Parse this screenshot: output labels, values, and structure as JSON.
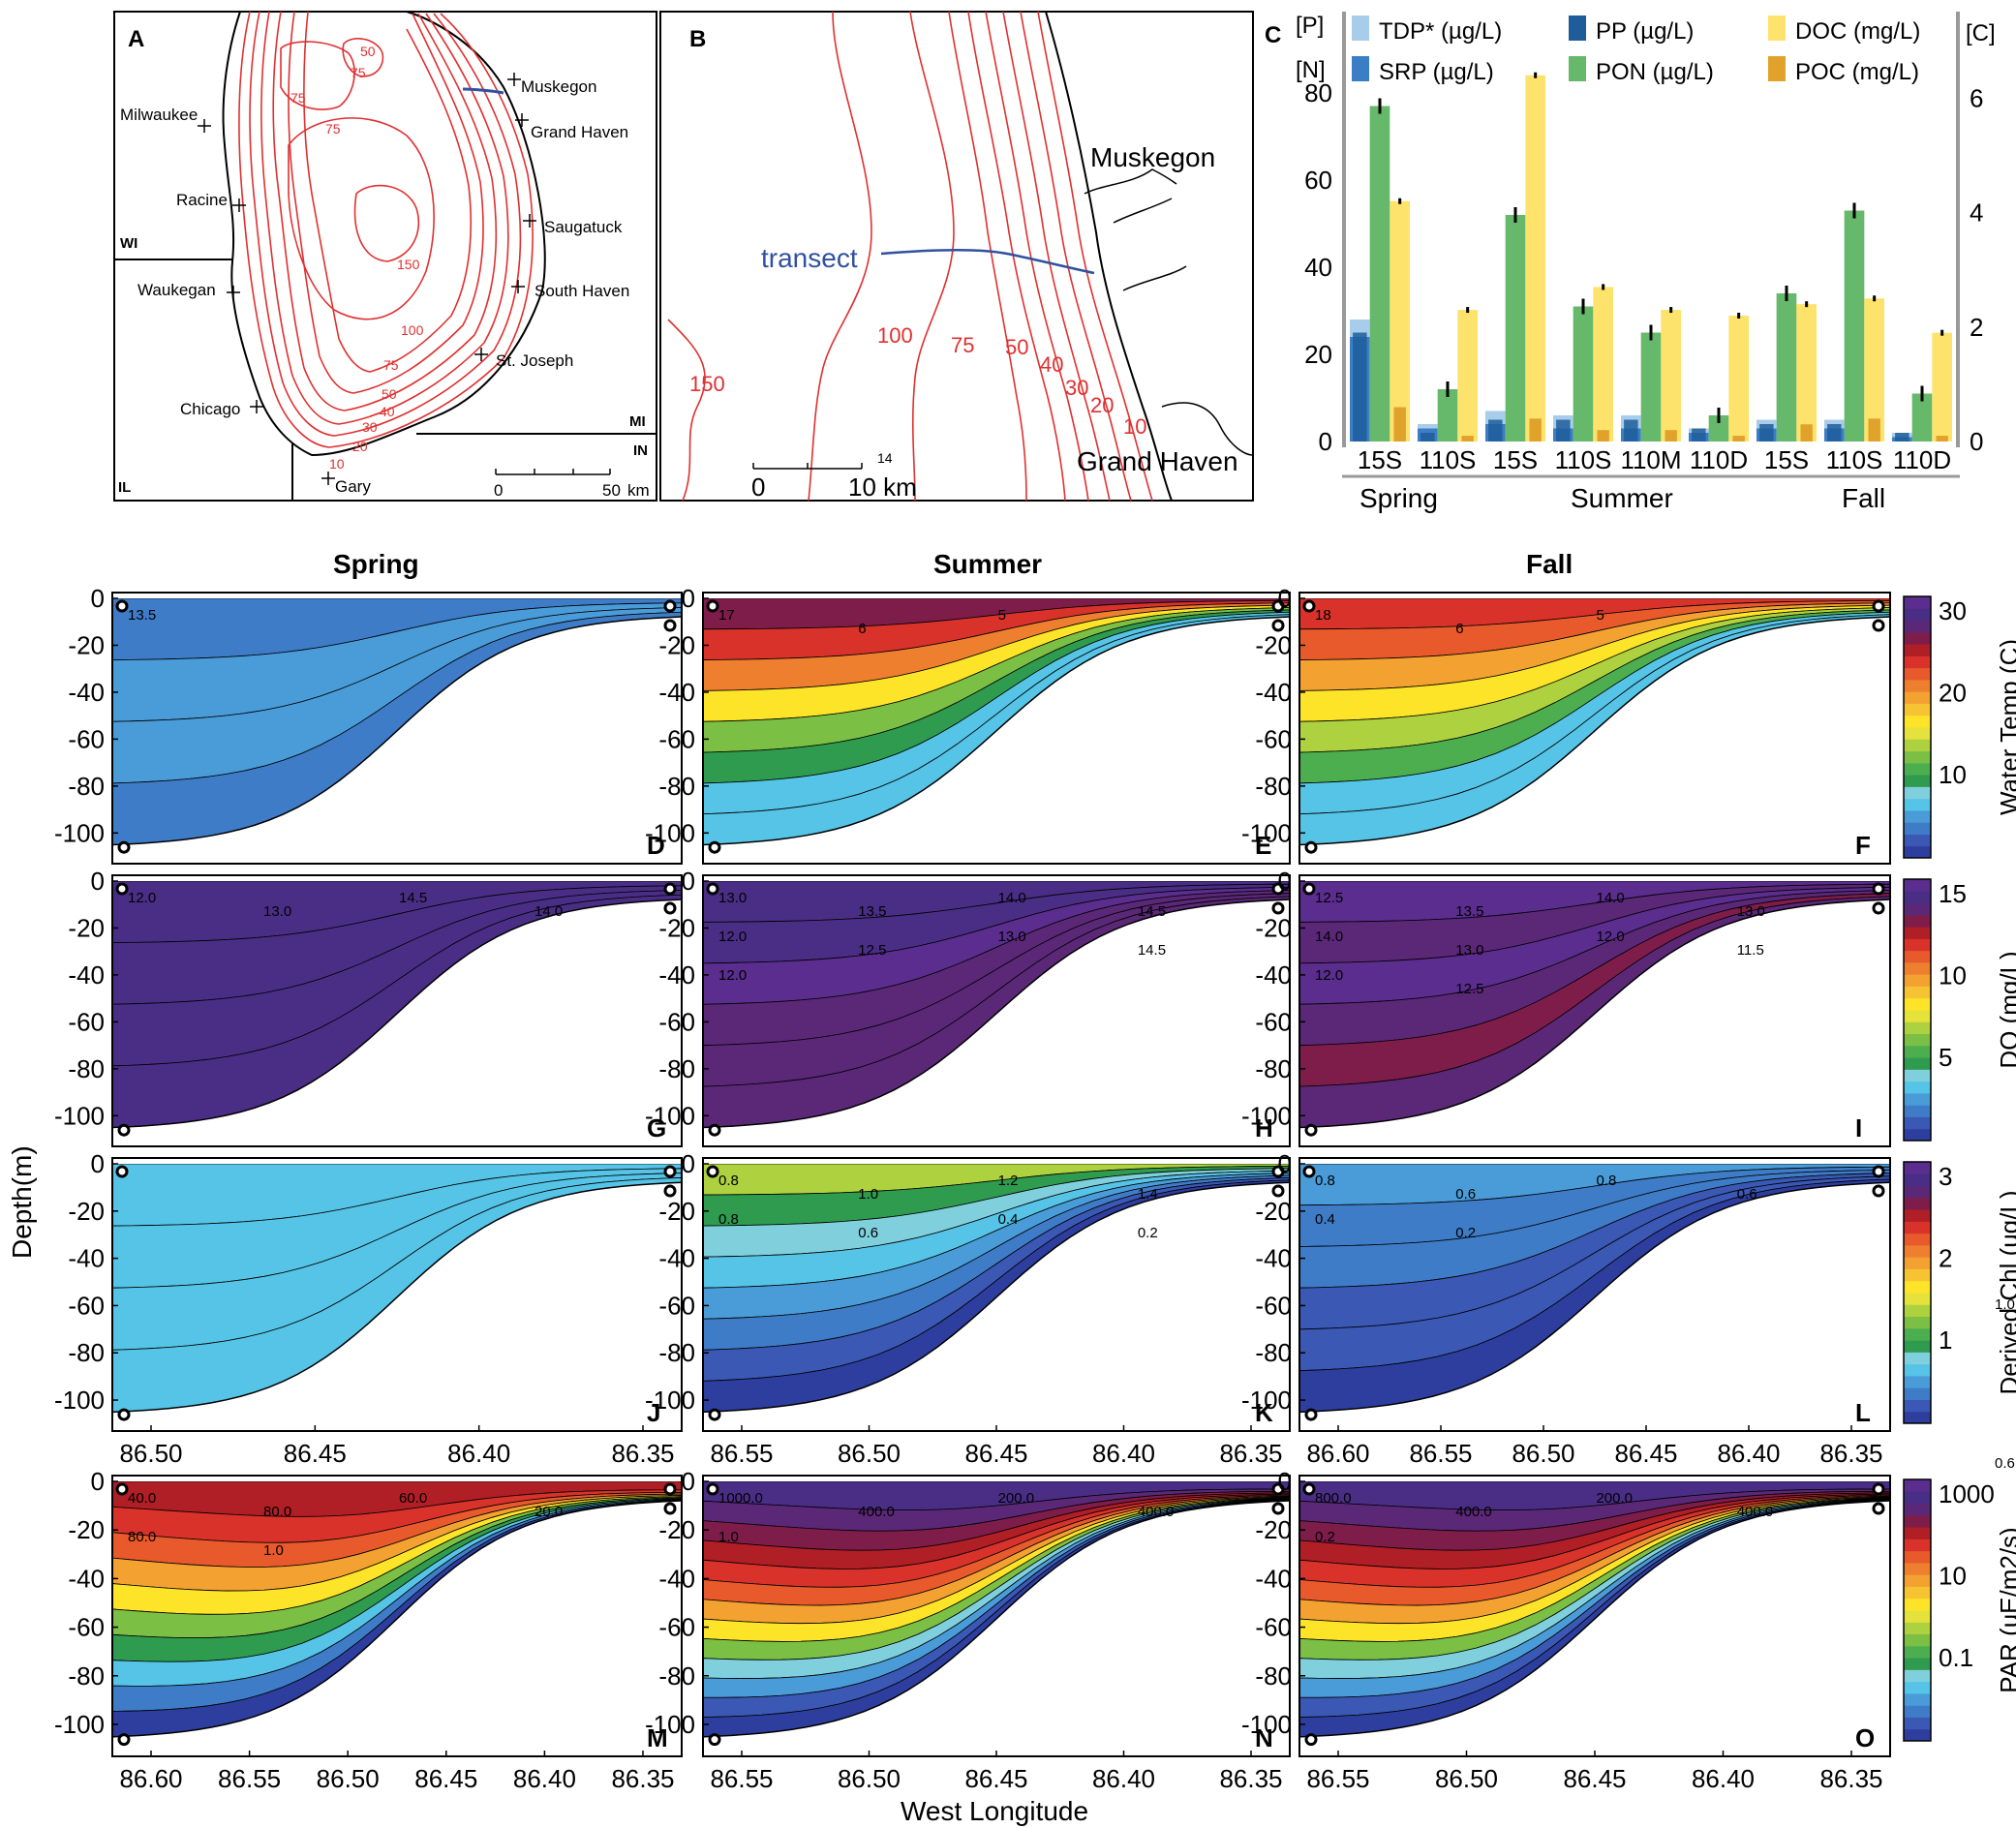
{
  "panel_letters": [
    "A",
    "B",
    "C",
    "D",
    "E",
    "F",
    "G",
    "H",
    "I",
    "J",
    "K",
    "L",
    "M",
    "N",
    "O"
  ],
  "map_a": {
    "cities": [
      "Muskegon",
      "Grand Haven",
      "Milwaukee",
      "Racine",
      "Saugatuck",
      "South Haven",
      "Waukegan",
      "St. Joseph",
      "Chicago",
      "Gary"
    ],
    "states": [
      "WI",
      "MI",
      "IN",
      "IL"
    ],
    "contours": [
      "50",
      "75",
      "75",
      "75",
      "150",
      "100",
      "75",
      "50",
      "40",
      "30",
      "20",
      "10"
    ],
    "scale": [
      "0",
      "50",
      "km"
    ]
  },
  "map_b": {
    "places": [
      "Muskegon",
      "Grand Haven"
    ],
    "transect": "transect",
    "contours": [
      "150",
      "100",
      "75",
      "50",
      "40",
      "30",
      "20",
      "10"
    ],
    "scale": [
      "0",
      "10 km"
    ],
    "scale_note": "14"
  },
  "bar_chart": {
    "left_axis": [
      "[P]",
      "[N]"
    ],
    "right_axis": "[C]",
    "legend": [
      "TDP* (µg/L)",
      "SRP (µg/L)",
      "PP (µg/L)",
      "PON (µg/L)",
      "DOC (mg/L)",
      "POC (mg/L)"
    ],
    "yticks_left": [
      "0",
      "20",
      "40",
      "60",
      "80"
    ],
    "yticks_right": [
      "0",
      "2",
      "4",
      "6"
    ],
    "stations": [
      "15S",
      "110S",
      "15S",
      "110S",
      "110M",
      "110D",
      "15S",
      "110S",
      "110D"
    ],
    "seasons": [
      "Spring",
      "Summer",
      "Fall"
    ]
  },
  "chart_data": {
    "type": "bar",
    "categories": [
      "Spring 15S",
      "Spring 110S",
      "Summer 15S",
      "Summer 110S",
      "Summer 110M",
      "Summer 110D",
      "Fall 15S",
      "Fall 110S",
      "Fall 110D"
    ],
    "series": [
      {
        "name": "TDP* (µg/L)",
        "values": [
          28,
          4,
          7,
          6,
          6,
          3,
          5,
          5,
          2
        ]
      },
      {
        "name": "SRP (µg/L)",
        "values": [
          24,
          3,
          4,
          3,
          3,
          2,
          3,
          3,
          1
        ]
      },
      {
        "name": "PP (µg/L)",
        "values": [
          25,
          2,
          5,
          5,
          5,
          3,
          4,
          4,
          2
        ]
      },
      {
        "name": "PON (µg/L)",
        "values": [
          77,
          12,
          52,
          31,
          25,
          6,
          34,
          53,
          11
        ]
      },
      {
        "name": "DOC (mg/L)",
        "values": [
          4.2,
          2.3,
          6.4,
          2.7,
          2.3,
          2.2,
          2.4,
          2.5,
          1.9
        ]
      },
      {
        "name": "POC (mg/L)",
        "values": [
          0.6,
          0.1,
          0.4,
          0.2,
          0.2,
          0.1,
          0.3,
          0.4,
          0.1
        ]
      }
    ],
    "ylim_left": [
      0,
      88
    ],
    "ylim_right": [
      0,
      6.7
    ],
    "legend_position": "top"
  },
  "sections": {
    "seasons": [
      "Spring",
      "Summer",
      "Fall"
    ],
    "ylabel": "Depth(m)",
    "xlabel": "West Longitude",
    "depth_ticks": [
      "0",
      "-20",
      "-40",
      "-60",
      "-80",
      "-100"
    ],
    "lon_ticks_spring_j": [
      "86.50",
      "86.45",
      "86.40",
      "86.35"
    ],
    "lon_ticks_spring_m": [
      "86.60",
      "86.55",
      "86.50",
      "86.45",
      "86.40",
      "86.35"
    ],
    "lon_ticks_summer": [
      "86.55",
      "86.50",
      "86.45",
      "86.40",
      "86.35"
    ],
    "lon_ticks_fall_l": [
      "86.60",
      "86.55",
      "86.50",
      "86.45",
      "86.40",
      "86.35"
    ],
    "lon_ticks_fall_o": [
      "86.55",
      "86.50",
      "86.45",
      "86.40",
      "86.35"
    ],
    "contour_labels": {
      "D": [
        "13.5"
      ],
      "E": [
        "17",
        "6",
        "5"
      ],
      "F": [
        "18",
        "6",
        "5"
      ],
      "G": [
        "12.0",
        "13.0",
        "14.5",
        "14.0"
      ],
      "H": [
        "13.0",
        "13.5",
        "14.0",
        "14.5",
        "12.0",
        "12.5",
        "13.0",
        "14.5",
        "12.0"
      ],
      "I": [
        "12.5",
        "13.5",
        "14.0",
        "13.0",
        "14.0",
        "13.0",
        "12.0",
        "11.5",
        "12.0",
        "12.5"
      ],
      "J": [],
      "K": [
        "0.8",
        "1.0",
        "1.2",
        "1.4",
        "0.8",
        "0.6",
        "0.4",
        "0.2"
      ],
      "L": [
        "0.8",
        "0.6",
        "0.8",
        "0.6",
        "0.4",
        "0.2"
      ],
      "M": [
        "40.0",
        "80.0",
        "60.0",
        "20.0",
        "80.0",
        "1.0"
      ],
      "N": [
        "1000.0",
        "400.0",
        "200.0",
        "400.0",
        "1.0"
      ],
      "O": [
        "800.0",
        "400.0",
        "200.0",
        "400.0",
        "0.2"
      ]
    },
    "stray": [
      "1.0",
      "0.6"
    ]
  },
  "colorbars": [
    {
      "label": "Water Temp (C)",
      "ticks": [
        "30",
        "20",
        "10"
      ]
    },
    {
      "label": "DO (mg/L)",
      "ticks": [
        "15",
        "10",
        "5"
      ]
    },
    {
      "label": "Derived Chl (ug/L)",
      "ticks": [
        "3",
        "2",
        "1"
      ]
    },
    {
      "label": "PAR (uE/m2/s)",
      "ticks": [
        "1000",
        "10",
        "0.1"
      ]
    }
  ],
  "colors": {
    "rainbow": [
      "#2e3e9e",
      "#3a58b4",
      "#3f7cc8",
      "#4a9cd8",
      "#56c4e6",
      "#7fd0dc",
      "#2f9b4e",
      "#4cae4f",
      "#7bbf45",
      "#aed13f",
      "#e6e23c",
      "#fde428",
      "#f6c432",
      "#f3a232",
      "#ee7f2f",
      "#e85a2c",
      "#d8322a",
      "#b01e26",
      "#7f1d4a",
      "#5b2878",
      "#4a2e86",
      "#5a2d8e"
    ],
    "bar_tdp": "#a8cdea",
    "bar_srp": "#3b7ec6",
    "bar_pp": "#1f5d9a",
    "bar_pon": "#66b86a",
    "bar_doc": "#fde36b",
    "bar_poc": "#e0a22a",
    "contour": "#e03030"
  }
}
